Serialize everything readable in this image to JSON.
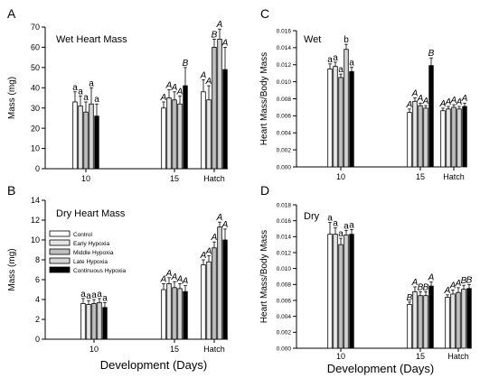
{
  "figure": {
    "xlabel_left": "Development (Days)",
    "xlabel_right": "Development (Days)"
  },
  "chart_data": [
    {
      "panel": "A",
      "type": "bar",
      "title": "Wet Heart Mass",
      "ylabel": "Mass (mg)",
      "categories": [
        "10",
        "15",
        "Hatch"
      ],
      "ylim": [
        0,
        70
      ],
      "yticks": [
        "0",
        "10",
        "20",
        "30",
        "40",
        "50",
        "60",
        "70"
      ],
      "series": [
        {
          "name": "Control",
          "values": [
            33,
            30,
            38
          ],
          "errors": [
            5,
            3,
            6
          ]
        },
        {
          "name": "Early Hypoxia",
          "values": [
            31,
            35,
            34
          ],
          "errors": [
            5,
            4,
            7
          ]
        },
        {
          "name": "Middle Hypoxia",
          "values": [
            28,
            34,
            60
          ],
          "errors": [
            5,
            4,
            4
          ]
        },
        {
          "name": "Late Hypoxia",
          "values": [
            32,
            32,
            64
          ],
          "errors": [
            8,
            4,
            5
          ]
        },
        {
          "name": "Continuous Hypoxia",
          "values": [
            26,
            41,
            49
          ],
          "errors": [
            6,
            9,
            11
          ]
        }
      ],
      "annotations": [
        [
          "a",
          "a",
          "a",
          "a",
          "a"
        ],
        [
          "A",
          "A",
          "A",
          "A",
          "B"
        ],
        [
          "A",
          "A",
          "B",
          "A",
          "A"
        ]
      ]
    },
    {
      "panel": "B",
      "type": "bar",
      "title": "Dry Heart Mass",
      "ylabel": "Mass (mg)",
      "categories": [
        "10",
        "15",
        "Hatch"
      ],
      "ylim": [
        0,
        14
      ],
      "yticks": [
        "0",
        "2",
        "4",
        "6",
        "8",
        "10",
        "12",
        "14"
      ],
      "series": [
        {
          "name": "Control",
          "values": [
            3.6,
            5.0,
            7.5
          ],
          "errors": [
            0.5,
            0.6,
            0.5
          ]
        },
        {
          "name": "Early Hypoxia",
          "values": [
            3.5,
            5.6,
            7.8
          ],
          "errors": [
            0.4,
            0.6,
            0.6
          ]
        },
        {
          "name": "Middle Hypoxia",
          "values": [
            3.6,
            5.2,
            9.2
          ],
          "errors": [
            0.4,
            0.6,
            0.6
          ]
        },
        {
          "name": "Late Hypoxia",
          "values": [
            3.7,
            5.1,
            11.3
          ],
          "errors": [
            0.4,
            0.5,
            0.5
          ]
        },
        {
          "name": "Continuous Hypoxia",
          "values": [
            3.2,
            4.8,
            10.0
          ],
          "errors": [
            0.5,
            0.6,
            1.1
          ]
        }
      ],
      "annotations": [
        [
          "a",
          "a",
          "a",
          "a",
          "a"
        ],
        [
          "A",
          "A",
          "A",
          "A",
          "A"
        ],
        [
          "A",
          "A",
          "A",
          "A",
          "A"
        ]
      ],
      "legend": {
        "placement": "top-left",
        "entries": [
          "Control",
          "Early Hypoxia",
          "Middle Hypoxia",
          "Late Hypoxia",
          "Continuous Hypoxia"
        ]
      }
    },
    {
      "panel": "C",
      "type": "bar",
      "title": "Wet",
      "ylabel": "Heart Mass/Body Mass",
      "categories": [
        "10",
        "15",
        "Hatch"
      ],
      "ylim": [
        0,
        0.016
      ],
      "yticks": [
        "0.000",
        "0.002",
        "0.004",
        "0.006",
        "0.008",
        "0.010",
        "0.012",
        "0.014",
        "0.016"
      ],
      "series": [
        {
          "name": "Control",
          "values": [
            0.0115,
            0.0064,
            0.0066
          ],
          "errors": [
            0.0006,
            0.0004,
            0.0003
          ]
        },
        {
          "name": "Early Hypoxia",
          "values": [
            0.0118,
            0.0077,
            0.0068
          ],
          "errors": [
            0.0005,
            0.0004,
            0.0003
          ]
        },
        {
          "name": "Middle Hypoxia",
          "values": [
            0.0105,
            0.0072,
            0.007
          ],
          "errors": [
            0.0004,
            0.0003,
            0.0003
          ]
        },
        {
          "name": "Late Hypoxia",
          "values": [
            0.0138,
            0.0069,
            0.0068
          ],
          "errors": [
            0.0006,
            0.0003,
            0.0003
          ]
        },
        {
          "name": "Continuous Hypoxia",
          "values": [
            0.0112,
            0.0119,
            0.0071
          ],
          "errors": [
            0.0005,
            0.0009,
            0.0004
          ]
        }
      ],
      "annotations": [
        [
          "a",
          "a",
          "a",
          "b",
          "a"
        ],
        [
          "A",
          "A",
          "A",
          "A",
          "B"
        ],
        [
          "A",
          "A",
          "A",
          "A",
          "A"
        ]
      ]
    },
    {
      "panel": "D",
      "type": "bar",
      "title": "Dry",
      "ylabel": "Heart Mass/Body Mass",
      "categories": [
        "10",
        "15",
        "Hatch"
      ],
      "ylim": [
        0,
        0.018
      ],
      "yticks": [
        "0.000",
        "0.002",
        "0.004",
        "0.006",
        "0.008",
        "0.010",
        "0.012",
        "0.014",
        "0.016",
        "0.018"
      ],
      "series": [
        {
          "name": "Control",
          "values": [
            0.0143,
            0.0055,
            0.0064
          ],
          "errors": [
            0.0015,
            0.0003,
            0.0003
          ]
        },
        {
          "name": "Early Hypoxia",
          "values": [
            0.0143,
            0.0071,
            0.0068
          ],
          "errors": [
            0.0008,
            0.0006,
            0.0005
          ]
        },
        {
          "name": "Middle Hypoxia",
          "values": [
            0.013,
            0.0066,
            0.007
          ],
          "errors": [
            0.0008,
            0.0005,
            0.0006
          ]
        },
        {
          "name": "Late Hypoxia",
          "values": [
            0.0142,
            0.0066,
            0.0074
          ],
          "errors": [
            0.0006,
            0.0005,
            0.0005
          ]
        },
        {
          "name": "Continuous Hypoxia",
          "values": [
            0.0143,
            0.0078,
            0.0075
          ],
          "errors": [
            0.0006,
            0.0005,
            0.0005
          ]
        }
      ],
      "annotations": [
        [
          "a",
          "a",
          "a",
          "a",
          "a"
        ],
        [
          "B",
          "A",
          "B",
          "B",
          "A"
        ],
        [
          "A",
          "A",
          "A",
          "B",
          "B"
        ]
      ]
    }
  ],
  "style": {
    "series_fills": [
      "#ffffff",
      "#e6e6e6",
      "#bfbfbf",
      "#d4d4d4",
      "#000000"
    ],
    "axis_color": "#000000"
  }
}
